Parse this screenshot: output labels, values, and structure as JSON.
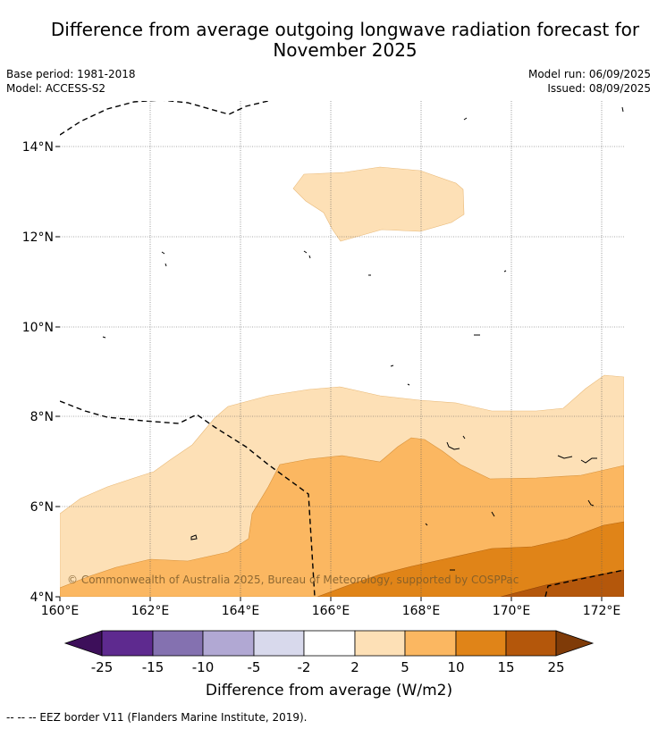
{
  "title": "Difference from average outgoing longwave radiation forecast for November 2025",
  "title_line1": "Difference from average outgoing longwave radiation forecast for",
  "title_line2": "November 2025",
  "meta_left": {
    "base_period": "Base period: 1981-2018",
    "model": "Model: ACCESS-S2"
  },
  "meta_right": {
    "model_run": "Model run: 06/09/2025",
    "issued": "Issued: 08/09/2025"
  },
  "map": {
    "lon_range": [
      160,
      172.5
    ],
    "lat_range": [
      4,
      15
    ],
    "x_ticks": [
      "160°E",
      "162°E",
      "164°E",
      "166°E",
      "168°E",
      "170°E",
      "172°E"
    ],
    "y_ticks": [
      "14°N",
      "12°N",
      "10°N",
      "8°N",
      "6°N",
      "4°N"
    ],
    "grid": true,
    "copyright": "© Commonwealth of Australia 2025, Bureau of Meteorology, supported by COSPPac"
  },
  "colorbar": {
    "labels": [
      "-25",
      "-15",
      "-10",
      "-5",
      "-2",
      "2",
      "5",
      "10",
      "15",
      "25"
    ],
    "colors": [
      "#3d0f5a",
      "#5e2a8f",
      "#8471b0",
      "#b1a8d3",
      "#d8d9ec",
      "#ffffff",
      "#fde0b6",
      "#fbb761",
      "#e08418",
      "#b4570b",
      "#7f3b08"
    ],
    "title": "Difference from average (W/m2)"
  },
  "footer": "--  --  -- EEZ border V11 (Flanders Marine Institute, 2019)."
}
